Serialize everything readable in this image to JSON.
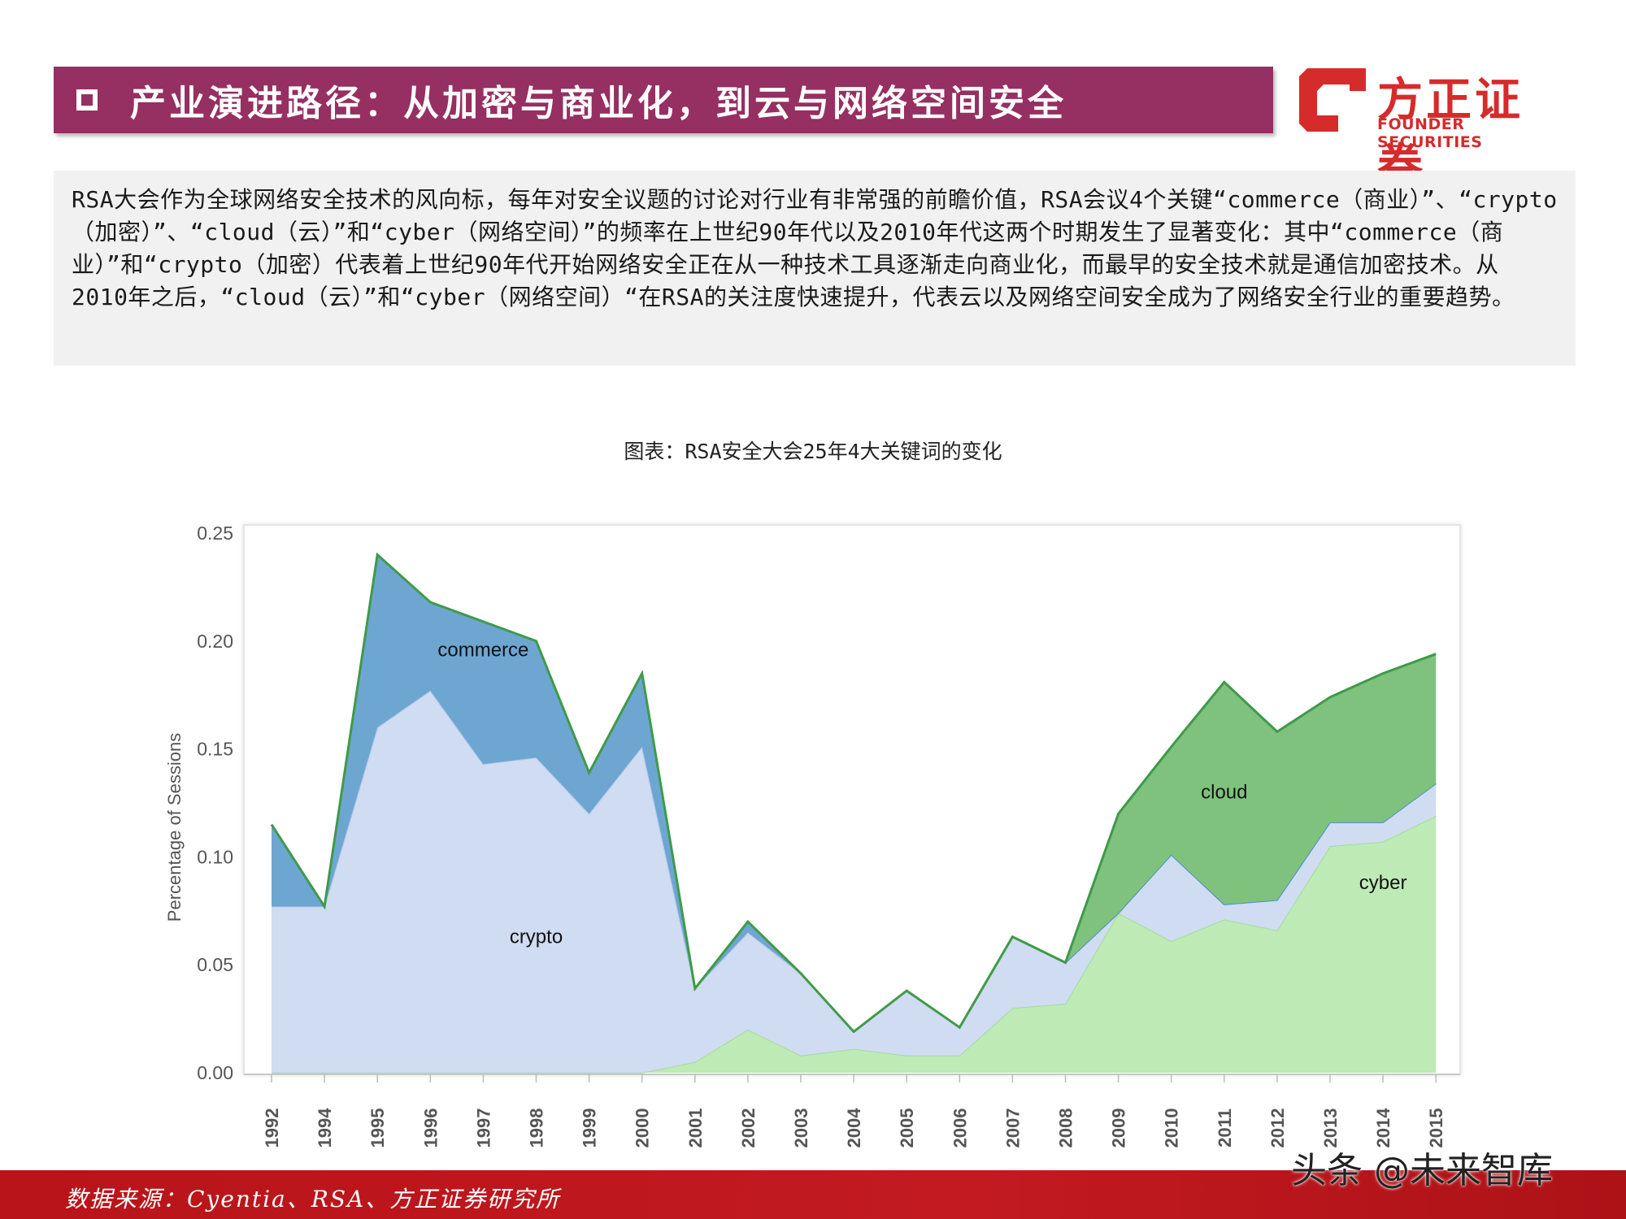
{
  "header": {
    "title": "产业演进路径：从加密与商业化，到云与网络空间安全",
    "logo_cn": "方正证券",
    "logo_en": "FOUNDER SECURITIES"
  },
  "description": "RSA大会作为全球网络安全技术的风向标，每年对安全议题的讨论对行业有非常强的前瞻价值，RSA会议4个关键“commerce（商业）”、“crypto（加密）”、“cloud（云）”和“cyber（网络空间）”的频率在上世纪90年代以及2010年代这两个时期发生了显著变化：其中“commerce（商业）”和“crypto（加密）代表着上世纪90年代开始网络安全正在从一种技术工具逐渐走向商业化，而最早的安全技术就是通信加密技术。从 2010年之后，“cloud（云）”和“cyber（网络空间）“在RSA的关注度快速提升，代表云以及网络空间安全成为了网络安全行业的重要趋势。",
  "chart_caption": "图表：RSA安全大会25年4大关键词的变化",
  "footer": {
    "source": "数据来源：Cyentia、RSA、方正证券研究所",
    "watermark": "头条 @未来智库"
  },
  "colors": {
    "brand_red": "#d52b2b",
    "title_bar": "#962f62",
    "commerce": "#6ea6d2",
    "crypto": "#cfdcf2",
    "cloud": "#7ec27e",
    "cyber": "#bdeab5",
    "series_line": "#3f9a49"
  },
  "chart_data": {
    "type": "area",
    "title": "",
    "xlabel": "",
    "ylabel": "Percentage of Sessions",
    "x": [
      "1992",
      "1994",
      "1995",
      "1996",
      "1997",
      "1998",
      "1999",
      "2000",
      "2001",
      "2002",
      "2003",
      "2004",
      "2005",
      "2006",
      "2007",
      "2008",
      "2009",
      "2010",
      "2011",
      "2012",
      "2013",
      "2014",
      "2015"
    ],
    "ylim": [
      0,
      0.25
    ],
    "yticks": [
      "0.00",
      "0.05",
      "0.10",
      "0.15",
      "0.20",
      "0.25"
    ],
    "grid": false,
    "series": [
      {
        "name": "cyber",
        "values": [
          0,
          0,
          0,
          0,
          0,
          0,
          0,
          0,
          0.005,
          0.02,
          0.008,
          0.011,
          0.008,
          0.008,
          0.03,
          0.032,
          0.074,
          0.061,
          0.071,
          0.066,
          0.105,
          0.107,
          0.119
        ]
      },
      {
        "name": "crypto",
        "values": [
          0.077,
          0.077,
          0.16,
          0.177,
          0.143,
          0.146,
          0.12,
          0.151,
          0.034,
          0.045,
          0.038,
          0.008,
          0.03,
          0.013,
          0.033,
          0.019,
          0,
          0.04,
          0.007,
          0.014,
          0.011,
          0.009,
          0.015
        ]
      },
      {
        "name": "commerce",
        "values": [
          0.038,
          0,
          0.08,
          0.041,
          0.066,
          0.054,
          0.019,
          0.034,
          0,
          0.005,
          0,
          0,
          0,
          0,
          0,
          0,
          0,
          0,
          0,
          0,
          0,
          0,
          0
        ]
      },
      {
        "name": "cloud",
        "values": [
          0,
          0,
          0,
          0,
          0,
          0,
          0,
          0,
          0,
          0,
          0,
          0,
          0,
          0,
          0,
          0,
          0.046,
          0.05,
          0.103,
          0.078,
          0.058,
          0.069,
          0.06
        ]
      }
    ],
    "labels": [
      {
        "text": "commerce",
        "x": "1997",
        "y": 0.193
      },
      {
        "text": "crypto",
        "x": "1998",
        "y": 0.06
      },
      {
        "text": "cloud",
        "x": "2011",
        "y": 0.127
      },
      {
        "text": "cyber",
        "x": "2014",
        "y": 0.085
      }
    ]
  }
}
